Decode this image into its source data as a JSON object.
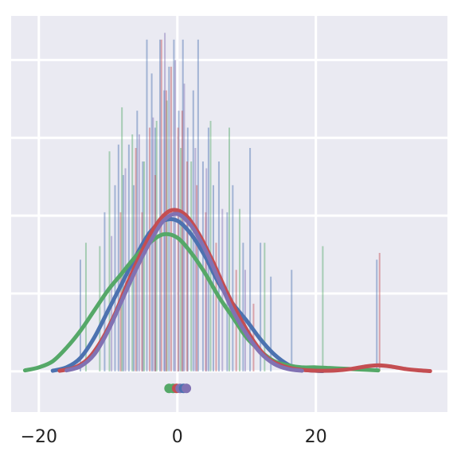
{
  "chart_data": {
    "type": "histogram-kde",
    "title": "",
    "xlabel": "",
    "ylabel": "",
    "xlim": [
      -24,
      39
    ],
    "ylim": [
      -0.012,
      0.105
    ],
    "xticks": [
      -20,
      0,
      20
    ],
    "xtick_labels": [
      "−20",
      "0",
      "20"
    ],
    "ytick_positions": [
      0.0,
      0.023,
      0.046,
      0.069,
      0.092
    ],
    "grid": true,
    "background": "#eaeaf2",
    "legend": "none",
    "series": [
      {
        "color": "#4c72b0",
        "bars": [
          {
            "x": -14.0,
            "h": 0.033
          },
          {
            "x": -10.5,
            "h": 0.047
          },
          {
            "x": -9.0,
            "h": 0.055
          },
          {
            "x": -8.5,
            "h": 0.067
          },
          {
            "x": -7.8,
            "h": 0.058
          },
          {
            "x": -7.0,
            "h": 0.067
          },
          {
            "x": -6.3,
            "h": 0.055
          },
          {
            "x": -5.8,
            "h": 0.077
          },
          {
            "x": -5.0,
            "h": 0.062
          },
          {
            "x": -4.4,
            "h": 0.098
          },
          {
            "x": -3.7,
            "h": 0.088
          },
          {
            "x": -3.2,
            "h": 0.072
          },
          {
            "x": -2.5,
            "h": 0.098
          },
          {
            "x": -1.9,
            "h": 0.083
          },
          {
            "x": -1.2,
            "h": 0.09
          },
          {
            "x": -0.5,
            "h": 0.098
          },
          {
            "x": 0.2,
            "h": 0.077
          },
          {
            "x": 0.8,
            "h": 0.098
          },
          {
            "x": 1.5,
            "h": 0.072
          },
          {
            "x": 2.3,
            "h": 0.083
          },
          {
            "x": 3.0,
            "h": 0.098
          },
          {
            "x": 3.7,
            "h": 0.062
          },
          {
            "x": 4.5,
            "h": 0.072
          },
          {
            "x": 5.2,
            "h": 0.055
          },
          {
            "x": 6.0,
            "h": 0.062
          },
          {
            "x": 7.2,
            "h": 0.047
          },
          {
            "x": 8.0,
            "h": 0.055
          },
          {
            "x": 9.5,
            "h": 0.038
          },
          {
            "x": 10.5,
            "h": 0.066
          },
          {
            "x": 12.0,
            "h": 0.038
          },
          {
            "x": 13.5,
            "h": 0.028
          },
          {
            "x": 16.5,
            "h": 0.03
          },
          {
            "x": 28.8,
            "h": 0.033
          }
        ],
        "kde": [
          [
            -18,
            0.0002
          ],
          [
            -16,
            0.0012
          ],
          [
            -14,
            0.004
          ],
          [
            -12,
            0.01
          ],
          [
            -10,
            0.018
          ],
          [
            -8,
            0.026
          ],
          [
            -6,
            0.034
          ],
          [
            -4,
            0.041
          ],
          [
            -2,
            0.0445
          ],
          [
            0,
            0.0445
          ],
          [
            2,
            0.0405
          ],
          [
            4,
            0.034
          ],
          [
            6,
            0.026
          ],
          [
            8,
            0.02
          ],
          [
            10,
            0.015
          ],
          [
            12,
            0.0095
          ],
          [
            14,
            0.005
          ],
          [
            16,
            0.002
          ],
          [
            18,
            0.0006
          ],
          [
            20,
            0.0002
          ],
          [
            21,
            0.0001
          ]
        ]
      },
      {
        "color": "#55a868",
        "bars": [
          {
            "x": -13.2,
            "h": 0.038
          },
          {
            "x": -11.2,
            "h": 0.037
          },
          {
            "x": -9.8,
            "h": 0.065
          },
          {
            "x": -8.0,
            "h": 0.078
          },
          {
            "x": -6.5,
            "h": 0.07
          },
          {
            "x": -4.8,
            "h": 0.062
          },
          {
            "x": -3.0,
            "h": 0.074
          },
          {
            "x": -1.5,
            "h": 0.08
          },
          {
            "x": 0.5,
            "h": 0.066
          },
          {
            "x": 2.0,
            "h": 0.062
          },
          {
            "x": 4.8,
            "h": 0.074
          },
          {
            "x": 7.5,
            "h": 0.072
          },
          {
            "x": 9.0,
            "h": 0.048
          },
          {
            "x": 12.6,
            "h": 0.038
          },
          {
            "x": 21.0,
            "h": 0.037
          }
        ],
        "kde": [
          [
            -22,
            0.0003
          ],
          [
            -20,
            0.0012
          ],
          [
            -18,
            0.003
          ],
          [
            -16,
            0.007
          ],
          [
            -14,
            0.012
          ],
          [
            -12,
            0.018
          ],
          [
            -10,
            0.024
          ],
          [
            -8,
            0.029
          ],
          [
            -6,
            0.034
          ],
          [
            -4,
            0.038
          ],
          [
            -2,
            0.0405
          ],
          [
            0,
            0.0395
          ],
          [
            2,
            0.035
          ],
          [
            4,
            0.029
          ],
          [
            6,
            0.022
          ],
          [
            8,
            0.016
          ],
          [
            10,
            0.01
          ],
          [
            12,
            0.006
          ],
          [
            14,
            0.003
          ],
          [
            16,
            0.0018
          ],
          [
            18,
            0.0012
          ],
          [
            20,
            0.0012
          ],
          [
            22,
            0.001
          ],
          [
            24,
            0.0008
          ],
          [
            26,
            0.0006
          ],
          [
            29,
            0.0003
          ]
        ]
      },
      {
        "color": "#c44e52",
        "bars": [
          {
            "x": -8.2,
            "h": 0.047
          },
          {
            "x": -6.0,
            "h": 0.066
          },
          {
            "x": -5.1,
            "h": 0.047
          },
          {
            "x": -4.0,
            "h": 0.072
          },
          {
            "x": -3.2,
            "h": 0.058
          },
          {
            "x": -2.3,
            "h": 0.098
          },
          {
            "x": -1.6,
            "h": 0.083
          },
          {
            "x": -0.9,
            "h": 0.09
          },
          {
            "x": 0.1,
            "h": 0.072
          },
          {
            "x": 0.7,
            "h": 0.077
          },
          {
            "x": 1.4,
            "h": 0.062
          },
          {
            "x": 2.8,
            "h": 0.055
          },
          {
            "x": 4.1,
            "h": 0.047
          },
          {
            "x": 5.6,
            "h": 0.038
          },
          {
            "x": 8.5,
            "h": 0.03
          },
          {
            "x": 11.0,
            "h": 0.02
          },
          {
            "x": 29.2,
            "h": 0.035
          }
        ],
        "kde": [
          [
            -17,
            0.0002
          ],
          [
            -15,
            0.001
          ],
          [
            -13,
            0.0035
          ],
          [
            -11,
            0.009
          ],
          [
            -9,
            0.017
          ],
          [
            -7,
            0.027
          ],
          [
            -5,
            0.036
          ],
          [
            -3,
            0.0435
          ],
          [
            -1,
            0.0475
          ],
          [
            1,
            0.0465
          ],
          [
            3,
            0.041
          ],
          [
            5,
            0.033
          ],
          [
            7,
            0.024
          ],
          [
            9,
            0.016
          ],
          [
            11,
            0.009
          ],
          [
            13,
            0.004
          ],
          [
            15,
            0.0018
          ],
          [
            17,
            0.0007
          ],
          [
            19,
            0.0003
          ],
          [
            21,
            0.0002
          ],
          [
            23,
            0.0003
          ],
          [
            25,
            0.0007
          ],
          [
            27,
            0.0014
          ],
          [
            29,
            0.0018
          ],
          [
            31,
            0.0014
          ],
          [
            33,
            0.0007
          ],
          [
            35,
            0.0003
          ],
          [
            36.5,
            0.0001
          ]
        ]
      },
      {
        "color": "#8172b3",
        "bars": [
          {
            "x": -9.5,
            "h": 0.04
          },
          {
            "x": -7.5,
            "h": 0.06
          },
          {
            "x": -5.5,
            "h": 0.07
          },
          {
            "x": -3.5,
            "h": 0.075
          },
          {
            "x": -1.8,
            "h": 0.1
          },
          {
            "x": -0.3,
            "h": 0.092
          },
          {
            "x": 1.0,
            "h": 0.085
          },
          {
            "x": 2.6,
            "h": 0.066
          },
          {
            "x": 4.2,
            "h": 0.06
          },
          {
            "x": 6.5,
            "h": 0.048
          },
          {
            "x": 9.8,
            "h": 0.03
          }
        ],
        "kde": [
          [
            -16,
            0.0003
          ],
          [
            -14,
            0.0015
          ],
          [
            -12,
            0.005
          ],
          [
            -10,
            0.012
          ],
          [
            -8,
            0.021
          ],
          [
            -6,
            0.03
          ],
          [
            -4,
            0.038
          ],
          [
            -2,
            0.0445
          ],
          [
            0,
            0.0465
          ],
          [
            2,
            0.043
          ],
          [
            4,
            0.036
          ],
          [
            6,
            0.027
          ],
          [
            8,
            0.018
          ],
          [
            10,
            0.011
          ],
          [
            12,
            0.0055
          ],
          [
            14,
            0.0022
          ],
          [
            16,
            0.0007
          ],
          [
            18,
            0.0002
          ]
        ]
      }
    ],
    "rug": {
      "y": -0.005,
      "markers": [
        {
          "x": -1.2,
          "color": "#55a868"
        },
        {
          "x": -0.6,
          "color": "#55a868"
        },
        {
          "x": -0.1,
          "color": "#c44e52"
        },
        {
          "x": 0.4,
          "color": "#8172b3"
        },
        {
          "x": 0.9,
          "color": "#4c72b0"
        },
        {
          "x": 1.3,
          "color": "#8172b3"
        }
      ]
    }
  }
}
